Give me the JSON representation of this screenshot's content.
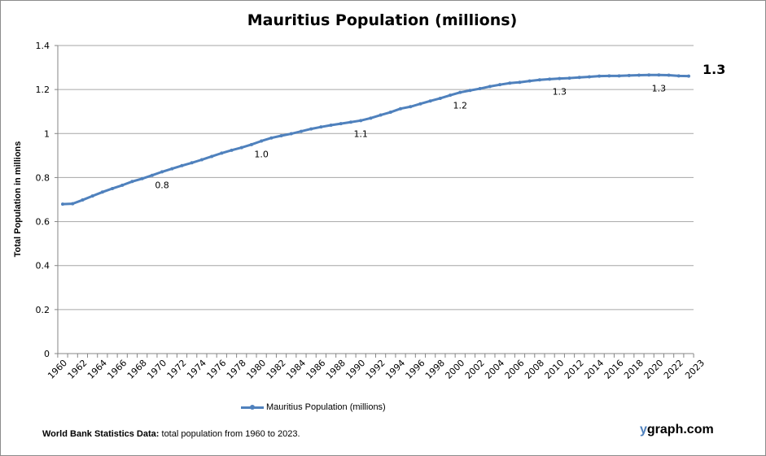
{
  "chart_data": {
    "type": "line",
    "title": "Mauritius Population (millions)",
    "xlabel": "",
    "ylabel": "Total Population  in millions",
    "ylim": [
      0,
      1.4
    ],
    "yticks": [
      "0",
      "0.2",
      "0.4",
      "0.6",
      "0.8",
      "1",
      "1.2",
      "1.4"
    ],
    "ytick_values": [
      0,
      0.2,
      0.4,
      0.6,
      0.8,
      1.0,
      1.2,
      1.4
    ],
    "grid": true,
    "legend_position": "bottom",
    "x": [
      1960,
      1961,
      1962,
      1963,
      1964,
      1965,
      1966,
      1967,
      1968,
      1969,
      1970,
      1971,
      1972,
      1973,
      1974,
      1975,
      1976,
      1977,
      1978,
      1979,
      1980,
      1981,
      1982,
      1983,
      1984,
      1985,
      1986,
      1987,
      1988,
      1989,
      1990,
      1991,
      1992,
      1993,
      1994,
      1995,
      1996,
      1997,
      1998,
      1999,
      2000,
      2001,
      2002,
      2003,
      2004,
      2005,
      2006,
      2007,
      2008,
      2009,
      2010,
      2011,
      2012,
      2013,
      2014,
      2015,
      2016,
      2017,
      2018,
      2019,
      2020,
      2021,
      2022,
      2023
    ],
    "xticks": [
      "1960",
      "1962",
      "1964",
      "1966",
      "1968",
      "1970",
      "1972",
      "1974",
      "1976",
      "1978",
      "1980",
      "1982",
      "1984",
      "1986",
      "1988",
      "1990",
      "1992",
      "1994",
      "1996",
      "1998",
      "2000",
      "2002",
      "2004",
      "2006",
      "2008",
      "2010",
      "2012",
      "2014",
      "2016",
      "2018",
      "2020",
      "2022",
      "2023"
    ],
    "series": [
      {
        "name": "Mauritius Population (millions)",
        "color": "#4f81bd",
        "values": [
          0.679,
          0.681,
          0.698,
          0.716,
          0.734,
          0.75,
          0.765,
          0.782,
          0.795,
          0.81,
          0.826,
          0.84,
          0.854,
          0.867,
          0.881,
          0.896,
          0.911,
          0.924,
          0.936,
          0.95,
          0.966,
          0.98,
          0.99,
          0.999,
          1.01,
          1.021,
          1.03,
          1.038,
          1.045,
          1.052,
          1.059,
          1.07,
          1.084,
          1.097,
          1.113,
          1.122,
          1.135,
          1.148,
          1.16,
          1.174,
          1.187,
          1.196,
          1.204,
          1.214,
          1.222,
          1.229,
          1.233,
          1.239,
          1.244,
          1.247,
          1.25,
          1.252,
          1.255,
          1.258,
          1.261,
          1.262,
          1.262,
          1.264,
          1.265,
          1.266,
          1.266,
          1.265,
          1.262,
          1.261
        ]
      }
    ],
    "annotations": [
      {
        "year": 1970,
        "text": "0.8"
      },
      {
        "year": 1980,
        "text": "1.0"
      },
      {
        "year": 1990,
        "text": "1.1"
      },
      {
        "year": 2000,
        "text": "1.2"
      },
      {
        "year": 2010,
        "text": "1.3"
      },
      {
        "year": 2020,
        "text": "1.3"
      }
    ],
    "end_label": "1.3"
  },
  "footer": {
    "source_bold": "World Bank  Statistics  Data:",
    "source_text": " total population from 1960 to 2023.",
    "brand_y": "y",
    "brand_rest": "graph.com"
  }
}
